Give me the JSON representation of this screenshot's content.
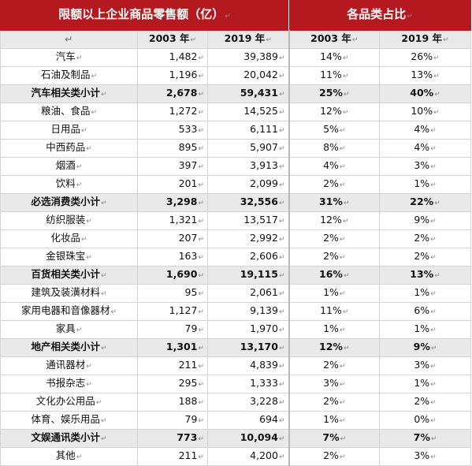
{
  "header": {
    "left_title": "限额以上企业商品零售额（亿）",
    "right_title": "各品类占比",
    "mark": "↵"
  },
  "year_row": {
    "blank": "↵",
    "y1": "2003 年",
    "y2": "2019 年",
    "y3": "2003 年",
    "y4": "2019 年"
  },
  "rows": [
    {
      "name": "汽车",
      "v2003": "1,482",
      "v2019": "39,389",
      "p2003": "14%",
      "p2019": "26%",
      "subtotal": false
    },
    {
      "name": "石油及制品",
      "v2003": "1,196",
      "v2019": "20,042",
      "p2003": "11%",
      "p2019": "13%",
      "subtotal": false
    },
    {
      "name": "汽车相关类小计",
      "v2003": "2,678",
      "v2019": "59,431",
      "p2003": "25%",
      "p2019": "40%",
      "subtotal": true
    },
    {
      "name": "粮油、食品",
      "v2003": "1,272",
      "v2019": "14,525",
      "p2003": "12%",
      "p2019": "10%",
      "subtotal": false
    },
    {
      "name": "日用品",
      "v2003": "533",
      "v2019": "6,111",
      "p2003": "5%",
      "p2019": "4%",
      "subtotal": false
    },
    {
      "name": "中西药品",
      "v2003": "895",
      "v2019": "5,907",
      "p2003": "8%",
      "p2019": "4%",
      "subtotal": false
    },
    {
      "name": "烟酒",
      "v2003": "397",
      "v2019": "3,913",
      "p2003": "4%",
      "p2019": "3%",
      "subtotal": false
    },
    {
      "name": "饮料",
      "v2003": "201",
      "v2019": "2,099",
      "p2003": "2%",
      "p2019": "1%",
      "subtotal": false
    },
    {
      "name": "必选消费类小计",
      "v2003": "3,298",
      "v2019": "32,556",
      "p2003": "31%",
      "p2019": "22%",
      "subtotal": true
    },
    {
      "name": "纺织服装",
      "v2003": "1,321",
      "v2019": "13,517",
      "p2003": "12%",
      "p2019": "9%",
      "subtotal": false
    },
    {
      "name": "化妆品",
      "v2003": "207",
      "v2019": "2,992",
      "p2003": "2%",
      "p2019": "2%",
      "subtotal": false
    },
    {
      "name": "金银珠宝",
      "v2003": "163",
      "v2019": "2,606",
      "p2003": "2%",
      "p2019": "2%",
      "subtotal": false
    },
    {
      "name": "百货相关类小计",
      "v2003": "1,690",
      "v2019": "19,115",
      "p2003": "16%",
      "p2019": "13%",
      "subtotal": true
    },
    {
      "name": "建筑及装潢材料",
      "v2003": "95",
      "v2019": "2,061",
      "p2003": "1%",
      "p2019": "1%",
      "subtotal": false
    },
    {
      "name": "家用电器和音像器材",
      "v2003": "1,127",
      "v2019": "9,139",
      "p2003": "11%",
      "p2019": "6%",
      "subtotal": false
    },
    {
      "name": "家具",
      "v2003": "79",
      "v2019": "1,970",
      "p2003": "1%",
      "p2019": "1%",
      "subtotal": false
    },
    {
      "name": "地产相关类小计",
      "v2003": "1,301",
      "v2019": "13,170",
      "p2003": "12%",
      "p2019": "9%",
      "subtotal": true
    },
    {
      "name": "通讯器材",
      "v2003": "211",
      "v2019": "4,839",
      "p2003": "2%",
      "p2019": "3%",
      "subtotal": false
    },
    {
      "name": "书报杂志",
      "v2003": "295",
      "v2019": "1,333",
      "p2003": "3%",
      "p2019": "1%",
      "subtotal": false
    },
    {
      "name": "文化办公用品",
      "v2003": "188",
      "v2019": "3,228",
      "p2003": "2%",
      "p2019": "2%",
      "subtotal": false
    },
    {
      "name": "体育、娱乐用品",
      "v2003": "79",
      "v2019": "694",
      "p2003": "1%",
      "p2019": "0%",
      "subtotal": false
    },
    {
      "name": "文娱通讯类小计",
      "v2003": "773",
      "v2019": "10,094",
      "p2003": "7%",
      "p2019": "7%",
      "subtotal": true
    },
    {
      "name": "其他",
      "v2003": "211",
      "v2019": "4,200",
      "p2003": "2%",
      "p2019": "3%",
      "subtotal": false
    }
  ],
  "colors": {
    "header_bg": "#b4191f",
    "subtotal_bg": "#e9e9e9"
  }
}
